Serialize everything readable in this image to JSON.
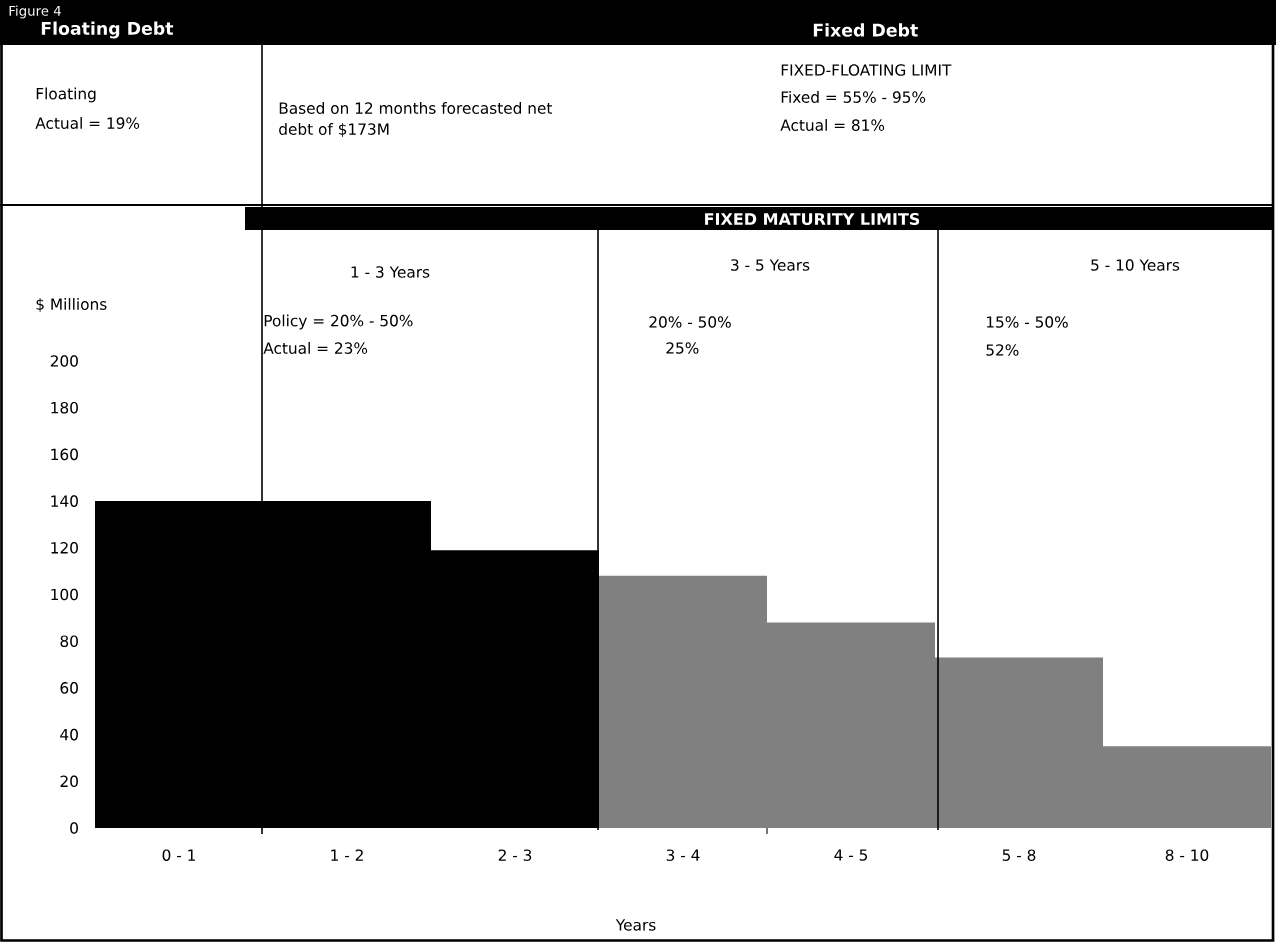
{
  "chart_data": {
    "type": "bar",
    "title": "Figure 4",
    "annotations": [
      "Floating Debt",
      "Fixed Debt",
      "Floating",
      "Actual = 19%",
      "Based on 12 months forecasted net",
      "debt of $173M",
      "FIXED-FLOATING LIMIT",
      "Fixed = 55% - 95%",
      "Actual = 81%",
      "FIXED MATURITY LIMITS",
      "1 - 3 Years",
      "3 - 5 Years",
      "5 - 10 Years",
      "Policy = 20% - 50%",
      "Actual = 23%",
      "20% - 50%",
      "25%",
      "15% - 50%",
      "52%"
    ],
    "xlabel": "Years",
    "ylabel": "$ Millions",
    "categories": [
      "0 - 1",
      "1 - 2",
      "2 - 3",
      "3 - 4",
      "4 - 5",
      "5 - 8",
      "8 - 10"
    ],
    "values": [
      140,
      140,
      119,
      108,
      88,
      73,
      35
    ],
    "colors": [
      "#000000",
      "#000000",
      "#000000",
      "#808080",
      "#808080",
      "#808080",
      "#808080"
    ],
    "ylim": [
      0,
      200
    ],
    "yticks": [
      0,
      20,
      40,
      60,
      80,
      100,
      120,
      140,
      160,
      180,
      200
    ]
  }
}
